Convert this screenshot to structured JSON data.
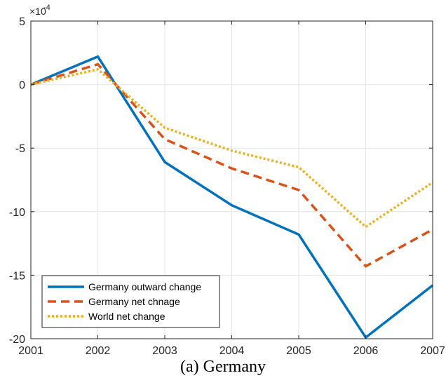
{
  "chart_data": {
    "type": "line",
    "caption": "(a) Germany",
    "y_exponent_label": "×10",
    "y_exponent_power": "-4",
    "x": [
      2001,
      2002,
      2003,
      2004,
      2005,
      2006,
      2007
    ],
    "x_ticks": [
      "2001",
      "2002",
      "2003",
      "2004",
      "2005",
      "2006",
      "2007"
    ],
    "y_ticks": [
      "5",
      "0",
      "-5",
      "-10",
      "-15",
      "-20"
    ],
    "y_tick_values": [
      5,
      0,
      -5,
      -10,
      -15,
      -20
    ],
    "xlim": [
      2001,
      2007
    ],
    "ylim": [
      -20,
      5
    ],
    "grid": true,
    "legend_position": "bottom-left",
    "series": [
      {
        "name": "Germany outward change",
        "color": "#0072BD",
        "dash": "solid",
        "values": [
          0,
          2.2,
          -6.1,
          -9.5,
          -11.8,
          -19.9,
          -15.8
        ]
      },
      {
        "name": "Germany net chnage",
        "color": "#D95319",
        "dash": "dashed",
        "values": [
          0,
          1.6,
          -4.3,
          -6.6,
          -8.3,
          -14.3,
          -11.4
        ]
      },
      {
        "name": "World net change",
        "color": "#EDB120",
        "dash": "dotted",
        "values": [
          0,
          1.2,
          -3.4,
          -5.2,
          -6.5,
          -11.2,
          -7.7
        ]
      }
    ]
  }
}
